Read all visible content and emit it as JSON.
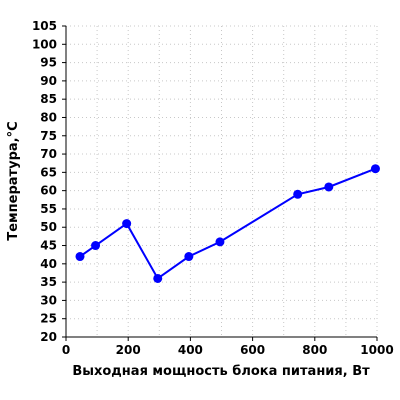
{
  "chart_data": {
    "type": "line",
    "title": "",
    "xlabel": "Выходная мощность блока питания, Вт",
    "ylabel": "Температура,°C",
    "xlim": [
      0,
      1000
    ],
    "ylim": [
      20,
      105
    ],
    "x_ticks": [
      0,
      200,
      400,
      600,
      800,
      1000
    ],
    "y_ticks": [
      20,
      25,
      30,
      35,
      40,
      45,
      50,
      55,
      60,
      65,
      70,
      75,
      80,
      85,
      90,
      95,
      100,
      105
    ],
    "grid": true,
    "legend": "none",
    "series": [
      {
        "color": "#0000ff",
        "marker": "circle",
        "x": [
          45,
          95,
          195,
          295,
          395,
          495,
          745,
          845,
          995
        ],
        "y": [
          42,
          45,
          51,
          36,
          42,
          46,
          59,
          61,
          66
        ]
      }
    ]
  }
}
